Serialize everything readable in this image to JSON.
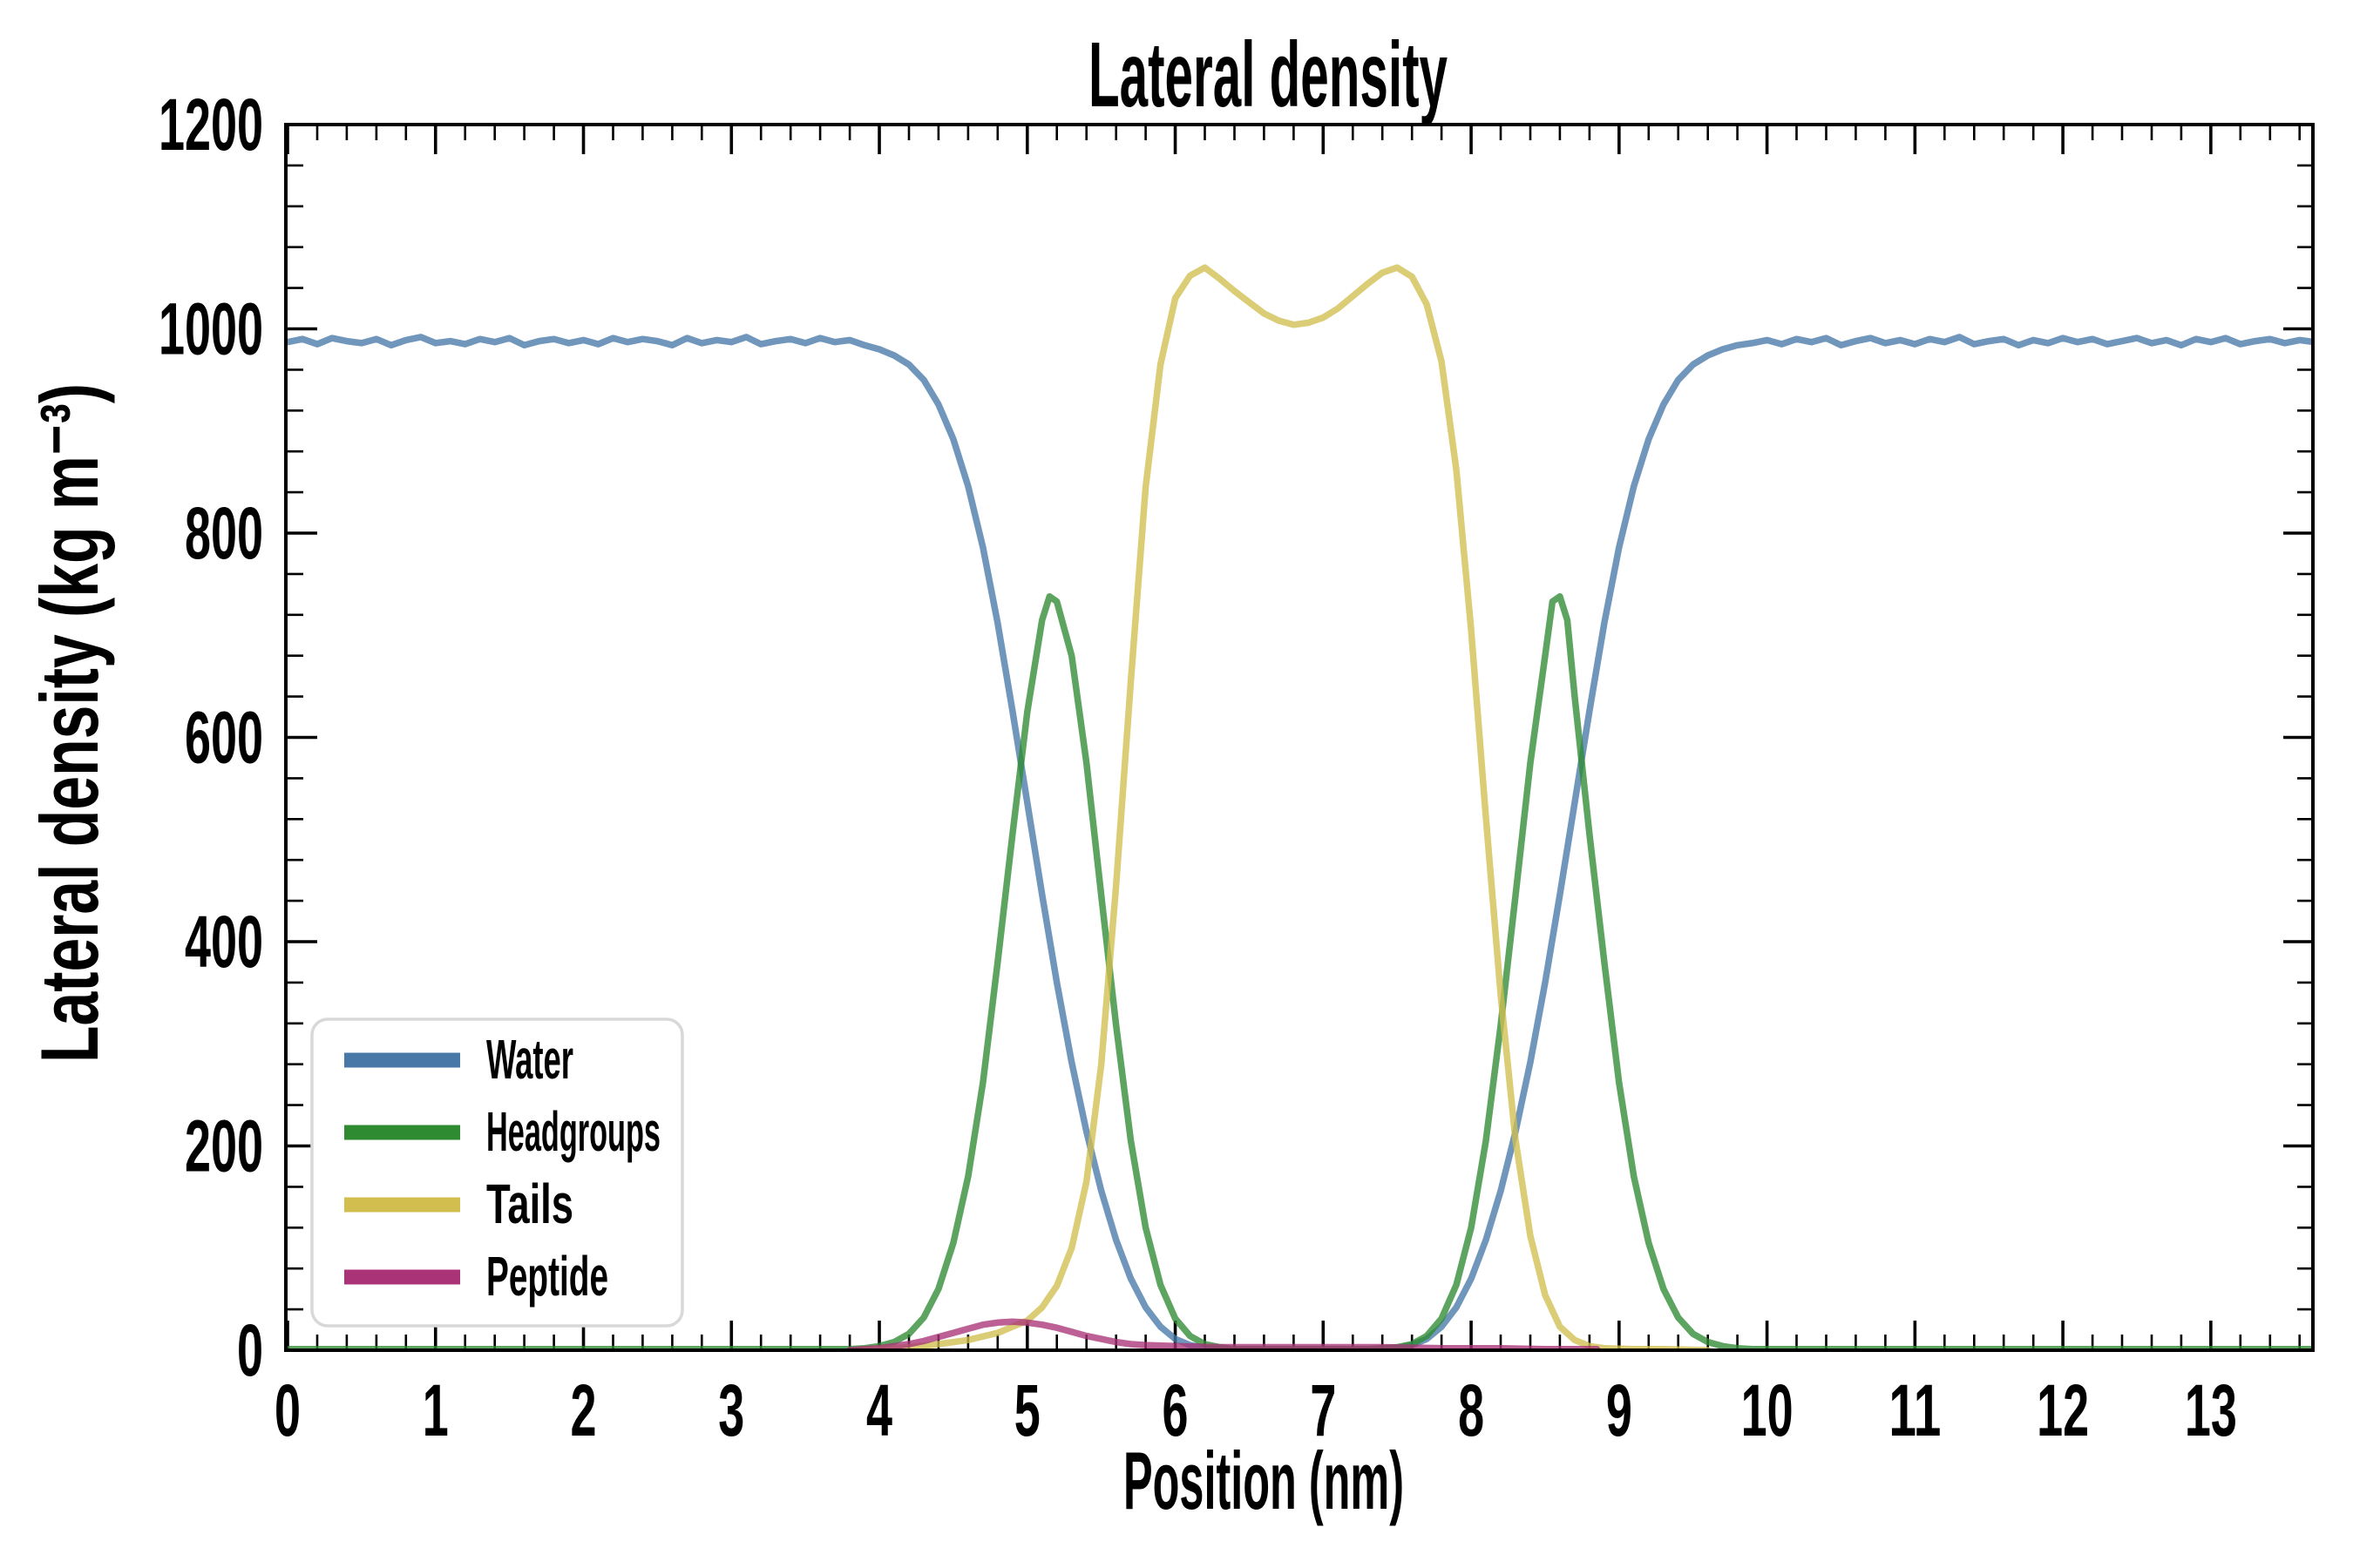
{
  "title": "Lateral density",
  "xlabel": "Position (nm)",
  "ylabel": "Lateral density (kg m⁻³)",
  "colors": {
    "axis": "#000000",
    "background": "#ffffff",
    "legend_border": "#d8d8d8",
    "water": "#4878a8",
    "headgroups": "#2e8b32",
    "tails": "#d1be4f",
    "peptide": "#aa3377"
  },
  "legend": {
    "position": "lower left",
    "labels": [
      "Water",
      "Headgroups",
      "Tails",
      "Peptide"
    ]
  },
  "chart_data": {
    "type": "line",
    "title": "Lateral density",
    "xlabel": "Position (nm)",
    "ylabel": "Lateral density (kg m⁻³)",
    "xlim": [
      0,
      13.69
    ],
    "ylim": [
      0,
      1200
    ],
    "x_major_ticks": [
      0,
      1,
      2,
      3,
      4,
      5,
      6,
      7,
      8,
      9,
      10,
      11,
      12,
      13
    ],
    "x_minor_step": 0.2,
    "y_major_ticks": [
      0,
      200,
      400,
      600,
      800,
      1000,
      1200
    ],
    "y_minor_step": 40,
    "grid": false,
    "legend_position": "lower left",
    "series": [
      {
        "name": "Water",
        "color": "#4878a8",
        "x0": 0.0,
        "dx": 0.1,
        "values": [
          987,
          990,
          985,
          991,
          988,
          986,
          990,
          984,
          989,
          992,
          986,
          988,
          985,
          990,
          987,
          991,
          984,
          988,
          990,
          986,
          989,
          985,
          991,
          987,
          990,
          988,
          984,
          991,
          986,
          989,
          987,
          992,
          985,
          988,
          990,
          986,
          991,
          987,
          989,
          984,
          980,
          974,
          965,
          950,
          926,
          892,
          846,
          786,
          712,
          626,
          536,
          446,
          360,
          282,
          214,
          156,
          108,
          70,
          42,
          23,
          11,
          5,
          2,
          1,
          0,
          0,
          0,
          0,
          0,
          0,
          0,
          0,
          0,
          0,
          1,
          2,
          5,
          11,
          23,
          42,
          70,
          108,
          156,
          214,
          282,
          360,
          446,
          536,
          626,
          712,
          786,
          846,
          892,
          926,
          950,
          965,
          974,
          980,
          984,
          986,
          989,
          985,
          990,
          987,
          991,
          984,
          988,
          991,
          986,
          989,
          985,
          990,
          987,
          992,
          985,
          988,
          990,
          984,
          989,
          986,
          991,
          987,
          990,
          985,
          988,
          991,
          986,
          989,
          984,
          990,
          987,
          991,
          985,
          988,
          990,
          986,
          989,
          987
        ]
      },
      {
        "name": "Headgroups",
        "color": "#2e8b32",
        "points": [
          [
            0,
            1
          ],
          [
            0.5,
            1
          ],
          [
            1,
            1
          ],
          [
            1.5,
            1
          ],
          [
            2,
            1
          ],
          [
            2.5,
            1
          ],
          [
            3,
            1
          ],
          [
            3.5,
            1
          ],
          [
            3.8,
            1
          ],
          [
            3.9,
            2
          ],
          [
            4.0,
            4
          ],
          [
            4.1,
            8
          ],
          [
            4.2,
            16
          ],
          [
            4.3,
            32
          ],
          [
            4.4,
            60
          ],
          [
            4.5,
            105
          ],
          [
            4.6,
            170
          ],
          [
            4.7,
            262
          ],
          [
            4.8,
            380
          ],
          [
            4.9,
            505
          ],
          [
            5.0,
            625
          ],
          [
            5.1,
            715
          ],
          [
            5.15,
            738
          ],
          [
            5.2,
            733
          ],
          [
            5.3,
            680
          ],
          [
            5.4,
            575
          ],
          [
            5.5,
            445
          ],
          [
            5.6,
            318
          ],
          [
            5.7,
            205
          ],
          [
            5.8,
            120
          ],
          [
            5.9,
            64
          ],
          [
            6.0,
            31
          ],
          [
            6.1,
            14
          ],
          [
            6.2,
            6
          ],
          [
            6.3,
            3
          ],
          [
            6.4,
            1
          ],
          [
            6.6,
            1
          ],
          [
            6.8,
            1
          ],
          [
            7.0,
            1
          ],
          [
            7.2,
            1
          ],
          [
            7.3,
            1
          ],
          [
            7.4,
            2
          ],
          [
            7.5,
            3
          ],
          [
            7.6,
            6
          ],
          [
            7.7,
            14
          ],
          [
            7.8,
            31
          ],
          [
            7.9,
            64
          ],
          [
            8.0,
            120
          ],
          [
            8.1,
            205
          ],
          [
            8.2,
            318
          ],
          [
            8.3,
            445
          ],
          [
            8.4,
            575
          ],
          [
            8.5,
            680
          ],
          [
            8.55,
            733
          ],
          [
            8.6,
            738
          ],
          [
            8.65,
            715
          ],
          [
            8.7,
            640
          ],
          [
            8.8,
            505
          ],
          [
            8.9,
            380
          ],
          [
            9.0,
            262
          ],
          [
            9.1,
            170
          ],
          [
            9.2,
            105
          ],
          [
            9.3,
            60
          ],
          [
            9.4,
            32
          ],
          [
            9.5,
            16
          ],
          [
            9.6,
            8
          ],
          [
            9.7,
            4
          ],
          [
            9.8,
            2
          ],
          [
            9.9,
            1
          ],
          [
            10.5,
            1
          ],
          [
            11,
            1
          ],
          [
            11.5,
            1
          ],
          [
            12,
            1
          ],
          [
            12.5,
            1
          ],
          [
            13,
            1
          ],
          [
            13.69,
            1
          ]
        ]
      },
      {
        "name": "Tails",
        "color": "#d1be4f",
        "points": [
          [
            3.9,
            0
          ],
          [
            4.0,
            1
          ],
          [
            4.2,
            3
          ],
          [
            4.4,
            6
          ],
          [
            4.6,
            10
          ],
          [
            4.8,
            17
          ],
          [
            5.0,
            29
          ],
          [
            5.1,
            42
          ],
          [
            5.2,
            63
          ],
          [
            5.3,
            100
          ],
          [
            5.4,
            165
          ],
          [
            5.5,
            280
          ],
          [
            5.6,
            455
          ],
          [
            5.7,
            655
          ],
          [
            5.8,
            845
          ],
          [
            5.9,
            965
          ],
          [
            6.0,
            1030
          ],
          [
            6.1,
            1052
          ],
          [
            6.2,
            1060
          ],
          [
            6.3,
            1049
          ],
          [
            6.4,
            1037
          ],
          [
            6.5,
            1026
          ],
          [
            6.6,
            1015
          ],
          [
            6.7,
            1008
          ],
          [
            6.8,
            1004
          ],
          [
            6.9,
            1006
          ],
          [
            7.0,
            1011
          ],
          [
            7.1,
            1020
          ],
          [
            7.2,
            1032
          ],
          [
            7.3,
            1044
          ],
          [
            7.4,
            1055
          ],
          [
            7.5,
            1060
          ],
          [
            7.6,
            1051
          ],
          [
            7.7,
            1024
          ],
          [
            7.8,
            968
          ],
          [
            7.9,
            862
          ],
          [
            8.0,
            705
          ],
          [
            8.1,
            522
          ],
          [
            8.2,
            348
          ],
          [
            8.3,
            206
          ],
          [
            8.4,
            112
          ],
          [
            8.5,
            54
          ],
          [
            8.6,
            23
          ],
          [
            8.7,
            10
          ],
          [
            8.8,
            4
          ],
          [
            8.9,
            2
          ],
          [
            9.1,
            1
          ],
          [
            9.3,
            1
          ],
          [
            9.6,
            0
          ]
        ]
      },
      {
        "name": "Peptide",
        "color": "#aa3377",
        "points": [
          [
            3.8,
            0
          ],
          [
            3.9,
            1
          ],
          [
            4.0,
            2
          ],
          [
            4.1,
            4
          ],
          [
            4.2,
            6
          ],
          [
            4.3,
            9
          ],
          [
            4.4,
            13
          ],
          [
            4.5,
            17
          ],
          [
            4.6,
            21
          ],
          [
            4.7,
            25
          ],
          [
            4.8,
            27
          ],
          [
            4.9,
            28
          ],
          [
            5.0,
            27
          ],
          [
            5.1,
            25
          ],
          [
            5.2,
            22
          ],
          [
            5.3,
            18
          ],
          [
            5.4,
            14
          ],
          [
            5.5,
            11
          ],
          [
            5.6,
            8
          ],
          [
            5.7,
            6
          ],
          [
            5.8,
            5
          ],
          [
            6.0,
            4
          ],
          [
            6.3,
            3
          ],
          [
            6.6,
            3
          ],
          [
            7.0,
            3
          ],
          [
            7.4,
            3
          ],
          [
            7.8,
            2
          ],
          [
            8.2,
            2
          ],
          [
            8.5,
            1
          ],
          [
            8.8,
            1
          ],
          [
            8.85,
            1
          ]
        ]
      }
    ]
  }
}
